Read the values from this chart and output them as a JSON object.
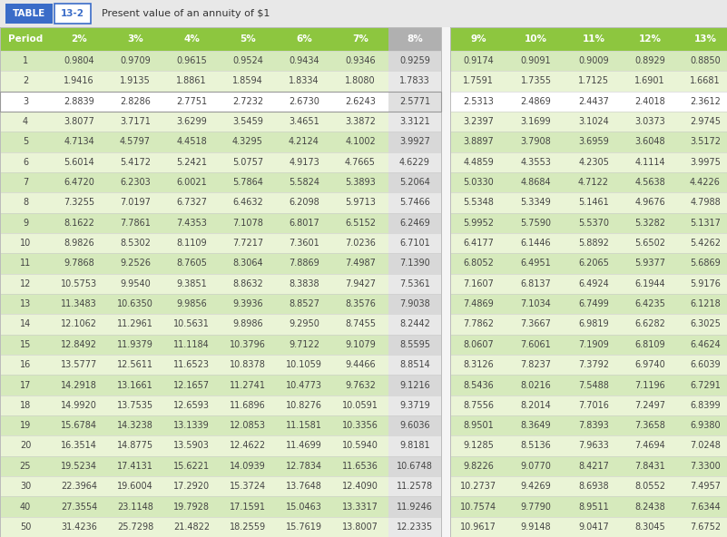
{
  "title_table": "TABLE",
  "title_num": "13-2",
  "title_desc": "Present value of an annuity of $1",
  "headers": [
    "Period",
    "2%",
    "3%",
    "4%",
    "5%",
    "6%",
    "7%",
    "8%",
    "9%",
    "10%",
    "11%",
    "12%",
    "13%"
  ],
  "highlight_col_idx": 7,
  "highlight_row_idx": 2,
  "rows": [
    [
      1,
      "0.9804",
      "0.9709",
      "0.9615",
      "0.9524",
      "0.9434",
      "0.9346",
      "0.9259",
      "0.9174",
      "0.9091",
      "0.9009",
      "0.8929",
      "0.8850"
    ],
    [
      2,
      "1.9416",
      "1.9135",
      "1.8861",
      "1.8594",
      "1.8334",
      "1.8080",
      "1.7833",
      "1.7591",
      "1.7355",
      "1.7125",
      "1.6901",
      "1.6681"
    ],
    [
      3,
      "2.8839",
      "2.8286",
      "2.7751",
      "2.7232",
      "2.6730",
      "2.6243",
      "2.5771",
      "2.5313",
      "2.4869",
      "2.4437",
      "2.4018",
      "2.3612"
    ],
    [
      4,
      "3.8077",
      "3.7171",
      "3.6299",
      "3.5459",
      "3.4651",
      "3.3872",
      "3.3121",
      "3.2397",
      "3.1699",
      "3.1024",
      "3.0373",
      "2.9745"
    ],
    [
      5,
      "4.7134",
      "4.5797",
      "4.4518",
      "4.3295",
      "4.2124",
      "4.1002",
      "3.9927",
      "3.8897",
      "3.7908",
      "3.6959",
      "3.6048",
      "3.5172"
    ],
    [
      6,
      "5.6014",
      "5.4172",
      "5.2421",
      "5.0757",
      "4.9173",
      "4.7665",
      "4.6229",
      "4.4859",
      "4.3553",
      "4.2305",
      "4.1114",
      "3.9975"
    ],
    [
      7,
      "6.4720",
      "6.2303",
      "6.0021",
      "5.7864",
      "5.5824",
      "5.3893",
      "5.2064",
      "5.0330",
      "4.8684",
      "4.7122",
      "4.5638",
      "4.4226"
    ],
    [
      8,
      "7.3255",
      "7.0197",
      "6.7327",
      "6.4632",
      "6.2098",
      "5.9713",
      "5.7466",
      "5.5348",
      "5.3349",
      "5.1461",
      "4.9676",
      "4.7988"
    ],
    [
      9,
      "8.1622",
      "7.7861",
      "7.4353",
      "7.1078",
      "6.8017",
      "6.5152",
      "6.2469",
      "5.9952",
      "5.7590",
      "5.5370",
      "5.3282",
      "5.1317"
    ],
    [
      10,
      "8.9826",
      "8.5302",
      "8.1109",
      "7.7217",
      "7.3601",
      "7.0236",
      "6.7101",
      "6.4177",
      "6.1446",
      "5.8892",
      "5.6502",
      "5.4262"
    ],
    [
      11,
      "9.7868",
      "9.2526",
      "8.7605",
      "8.3064",
      "7.8869",
      "7.4987",
      "7.1390",
      "6.8052",
      "6.4951",
      "6.2065",
      "5.9377",
      "5.6869"
    ],
    [
      12,
      "10.5753",
      "9.9540",
      "9.3851",
      "8.8632",
      "8.3838",
      "7.9427",
      "7.5361",
      "7.1607",
      "6.8137",
      "6.4924",
      "6.1944",
      "5.9176"
    ],
    [
      13,
      "11.3483",
      "10.6350",
      "9.9856",
      "9.3936",
      "8.8527",
      "8.3576",
      "7.9038",
      "7.4869",
      "7.1034",
      "6.7499",
      "6.4235",
      "6.1218"
    ],
    [
      14,
      "12.1062",
      "11.2961",
      "10.5631",
      "9.8986",
      "9.2950",
      "8.7455",
      "8.2442",
      "7.7862",
      "7.3667",
      "6.9819",
      "6.6282",
      "6.3025"
    ],
    [
      15,
      "12.8492",
      "11.9379",
      "11.1184",
      "10.3796",
      "9.7122",
      "9.1079",
      "8.5595",
      "8.0607",
      "7.6061",
      "7.1909",
      "6.8109",
      "6.4624"
    ],
    [
      16,
      "13.5777",
      "12.5611",
      "11.6523",
      "10.8378",
      "10.1059",
      "9.4466",
      "8.8514",
      "8.3126",
      "7.8237",
      "7.3792",
      "6.9740",
      "6.6039"
    ],
    [
      17,
      "14.2918",
      "13.1661",
      "12.1657",
      "11.2741",
      "10.4773",
      "9.7632",
      "9.1216",
      "8.5436",
      "8.0216",
      "7.5488",
      "7.1196",
      "6.7291"
    ],
    [
      18,
      "14.9920",
      "13.7535",
      "12.6593",
      "11.6896",
      "10.8276",
      "10.0591",
      "9.3719",
      "8.7556",
      "8.2014",
      "7.7016",
      "7.2497",
      "6.8399"
    ],
    [
      19,
      "15.6784",
      "14.3238",
      "13.1339",
      "12.0853",
      "11.1581",
      "10.3356",
      "9.6036",
      "8.9501",
      "8.3649",
      "7.8393",
      "7.3658",
      "6.9380"
    ],
    [
      20,
      "16.3514",
      "14.8775",
      "13.5903",
      "12.4622",
      "11.4699",
      "10.5940",
      "9.8181",
      "9.1285",
      "8.5136",
      "7.9633",
      "7.4694",
      "7.0248"
    ],
    [
      25,
      "19.5234",
      "17.4131",
      "15.6221",
      "14.0939",
      "12.7834",
      "11.6536",
      "10.6748",
      "9.8226",
      "9.0770",
      "8.4217",
      "7.8431",
      "7.3300"
    ],
    [
      30,
      "22.3964",
      "19.6004",
      "17.2920",
      "15.3724",
      "13.7648",
      "12.4090",
      "11.2578",
      "10.2737",
      "9.4269",
      "8.6938",
      "8.0552",
      "7.4957"
    ],
    [
      40,
      "27.3554",
      "23.1148",
      "19.7928",
      "17.1591",
      "15.0463",
      "13.3317",
      "11.9246",
      "10.7574",
      "9.7790",
      "8.9511",
      "8.2438",
      "7.6344"
    ],
    [
      50,
      "31.4236",
      "25.7298",
      "21.4822",
      "18.2559",
      "15.7619",
      "13.8007",
      "12.2335",
      "10.9617",
      "9.9148",
      "9.0417",
      "8.3045",
      "7.6752"
    ]
  ],
  "color_header_bg": "#8dc63f",
  "color_row_even": "#d6eabc",
  "color_row_odd": "#eaf4d6",
  "color_highlight_col_header": "#b0b0b0",
  "color_highlight_col_cell_even": "#d8d8d8",
  "color_highlight_col_cell_odd": "#e8e8e8",
  "color_highlight_row_bg": "#ffffff",
  "color_highlight_row_hl_col": "#e0e0e0",
  "color_table_label_bg": "#3a6cc8",
  "color_table_num_text": "#3a6cc8",
  "color_cell_text": "#444444",
  "color_header_text": "#ffffff",
  "color_bg": "#f5f5f5",
  "title_bar_color": "#e8e8e8"
}
